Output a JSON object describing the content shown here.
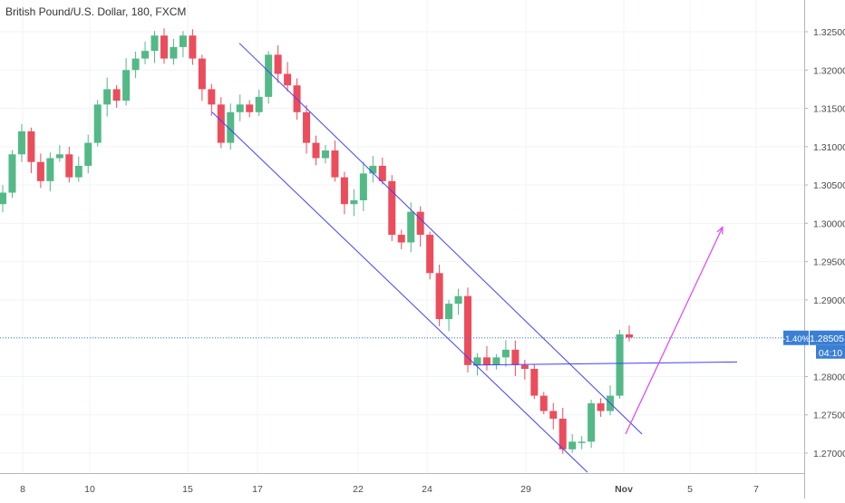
{
  "header": {
    "symbol_title": "British Pound/U.S. Dollar, 180, FXCM"
  },
  "price_axis": {
    "ticks": [
      "1.32500",
      "1.32000",
      "1.31500",
      "1.31000",
      "1.30500",
      "1.30000",
      "1.29500",
      "1.29000",
      "1.28500",
      "1.28000",
      "1.27500",
      "1.27000"
    ],
    "tick_values": [
      1.325,
      1.32,
      1.315,
      1.31,
      1.305,
      1.3,
      1.295,
      1.29,
      1.285,
      1.28,
      1.275,
      1.27
    ],
    "current_price_label": "1.28505",
    "change_label": "-1.40%",
    "countdown_label": "04:10"
  },
  "time_axis": {
    "ticks": [
      "8",
      "10",
      "15",
      "17",
      "22",
      "24",
      "29",
      "Nov",
      "5",
      "7"
    ],
    "bold": [
      "Nov"
    ]
  },
  "colors": {
    "up": "#53b987",
    "down": "#eb4d5c",
    "channel": "#4040ff",
    "projection": "#e040fb",
    "price_line": "#3b7fd4",
    "label_bg": "#3b7fd4",
    "axis_text": "#4a4a4a",
    "grid": "#f0f3fa"
  },
  "chart_data": {
    "type": "candlestick",
    "title": "British Pound/U.S. Dollar, 180, FXCM",
    "x_axis": [
      "8",
      "10",
      "15",
      "17",
      "22",
      "24",
      "29",
      "Nov",
      "5",
      "7"
    ],
    "ylim": [
      1.268,
      1.3275
    ],
    "last_price": 1.28505,
    "change_percent": "-1.40%",
    "grid": true,
    "close_path": [
      1.304,
      1.309,
      1.312,
      1.308,
      1.3055,
      1.3085,
      1.309,
      1.306,
      1.3075,
      1.3105,
      1.3155,
      1.3175,
      1.316,
      1.32,
      1.3215,
      1.3225,
      1.3245,
      1.3215,
      1.323,
      1.3245,
      1.3215,
      1.3175,
      1.3155,
      1.3105,
      1.3145,
      1.3155,
      1.3145,
      1.3165,
      1.322,
      1.3195,
      1.318,
      1.3145,
      1.3105,
      1.3085,
      1.3095,
      1.306,
      1.3025,
      1.303,
      1.3065,
      1.3075,
      1.3055,
      1.2985,
      1.2975,
      1.3015,
      1.2985,
      1.2935,
      1.2875,
      1.2895,
      1.2905,
      1.2815,
      1.2825,
      1.2815,
      1.2825,
      1.2835,
      1.2815,
      1.281,
      1.2775,
      1.2755,
      1.2745,
      1.2705,
      1.2715,
      1.2715,
      1.2765,
      1.2755,
      1.2775,
      1.2855,
      1.2851
    ],
    "channel_upper": [
      {
        "date": "16",
        "price": 1.3235
      },
      {
        "date": "30/31",
        "price": 1.2725
      }
    ],
    "channel_lower": [
      {
        "date": "16",
        "price": 1.3145
      },
      {
        "date": "31",
        "price": 1.2675
      }
    ],
    "breakout_line": [
      {
        "date": "26",
        "price": 1.2815
      },
      {
        "date": "Nov 6",
        "price": 1.2819
      }
    ],
    "projection_arrow": [
      {
        "date": "Nov",
        "price": 1.2725
      },
      {
        "date": "Nov 6",
        "price": 1.2995
      }
    ]
  }
}
